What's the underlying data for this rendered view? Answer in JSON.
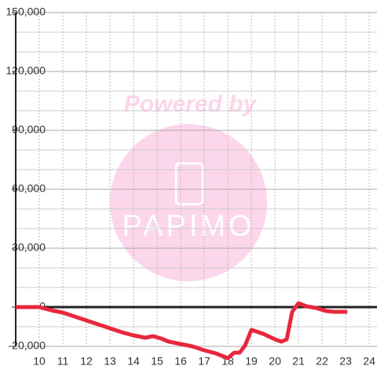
{
  "chart_data": {
    "type": "line",
    "watermark": {
      "line1": "Powered by",
      "line2": "PAPIMO"
    },
    "x": [
      9,
      10,
      10.5,
      11,
      11.5,
      12,
      12.5,
      13,
      13.5,
      14,
      14.5,
      14.83,
      15.17,
      15.5,
      16,
      16.5,
      17,
      17.5,
      18,
      18.27,
      18.5,
      18.73,
      19,
      19.5,
      20,
      20.27,
      20.5,
      20.73,
      21,
      21.33,
      21.73,
      22.17,
      22.5,
      23.07
    ],
    "series": [
      {
        "color": "#e8283c",
        "values": [
          0,
          0,
          -1600,
          -2800,
          -4800,
          -6800,
          -8800,
          -10800,
          -12800,
          -14400,
          -15600,
          -14800,
          -16000,
          -17600,
          -18800,
          -20000,
          -22000,
          -23600,
          -26000,
          -23200,
          -23200,
          -19600,
          -11600,
          -13600,
          -16400,
          -17600,
          -16400,
          -2400,
          2000,
          400,
          -400,
          -2000,
          -2400,
          -2400
        ]
      }
    ],
    "xlim": [
      9,
      24.33
    ],
    "xticks": [
      10,
      11,
      12,
      13,
      14,
      15,
      16,
      17,
      18,
      19,
      20,
      21,
      22,
      23,
      24
    ],
    "ylim": [
      -20000,
      150000
    ],
    "yticks": [
      {
        "value": -20000,
        "label": "-20,000"
      },
      0,
      {
        "value": 30000,
        "label": "30,000"
      },
      {
        "value": 60000,
        "label": "60,000"
      },
      {
        "value": 90000,
        "label": "90,000"
      },
      {
        "value": 120000,
        "label": "120,000"
      },
      {
        "value": 150000,
        "label": "150,000"
      }
    ],
    "y_minor_ticks": [
      -10000,
      10000,
      20000,
      40000,
      50000,
      70000,
      80000,
      100000,
      110000,
      130000,
      140000
    ],
    "grid": true
  }
}
